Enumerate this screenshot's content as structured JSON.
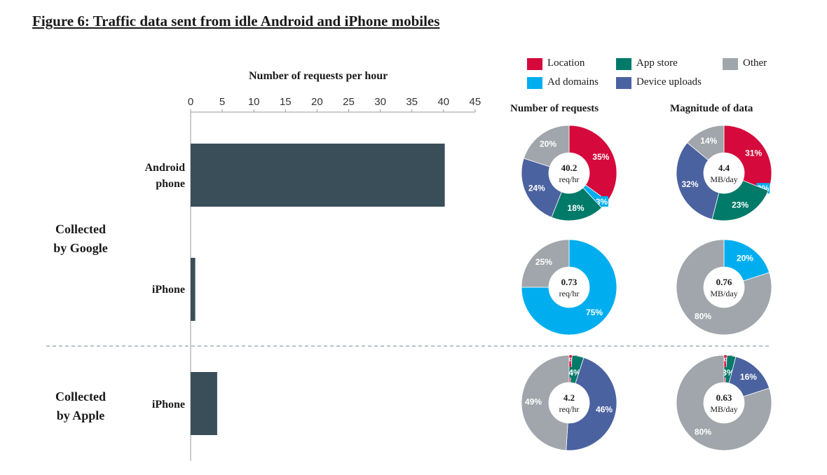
{
  "figure": {
    "title": "Figure 6: Traffic data sent from idle Android and iPhone mobiles"
  },
  "legend": {
    "items": [
      {
        "key": "location",
        "label": "Location",
        "color": "#d6093c"
      },
      {
        "key": "app_store",
        "label": "App store",
        "color": "#007a69"
      },
      {
        "key": "other",
        "label": "Other",
        "color": "#a0a6ab"
      },
      {
        "key": "ad_domains",
        "label": "Ad domains",
        "color": "#00aeef"
      },
      {
        "key": "device_uploads",
        "label": "Device uploads",
        "color": "#4b62a0"
      }
    ]
  },
  "columns": {
    "requests": "Number of requests",
    "magnitude": "Magnitude of data"
  },
  "groups": {
    "google": "Collected\nby Google",
    "apple": "Collected\nby Apple"
  },
  "chart_data": [
    {
      "type": "bar",
      "orientation": "horizontal",
      "xlabel": "Number of requests per hour",
      "xlim": [
        0,
        45
      ],
      "ticks": [
        "0",
        "5",
        "10",
        "15",
        "20",
        "25",
        "30",
        "35",
        "40",
        "45"
      ],
      "categories": [
        "Android phone",
        "iPhone",
        "iPhone"
      ],
      "groups": [
        "Collected by Google",
        "Collected by Google",
        "Collected by Apple"
      ],
      "values": [
        40.2,
        0.73,
        4.2
      ],
      "color": "#3a4e59"
    },
    {
      "type": "pie",
      "charts": [
        {
          "id": "google-android-requests",
          "center": "40.2",
          "unit": "req/hr",
          "slices": [
            {
              "key": "location",
              "value": 35,
              "label": "35%"
            },
            {
              "key": "ad_domains",
              "value": 3,
              "label": "3%"
            },
            {
              "key": "app_store",
              "value": 18,
              "label": "18%"
            },
            {
              "key": "device_uploads",
              "value": 24,
              "label": "24%"
            },
            {
              "key": "other",
              "value": 20,
              "label": "20%"
            }
          ]
        },
        {
          "id": "google-android-magnitude",
          "center": "4.4",
          "unit": "MB/day",
          "slices": [
            {
              "key": "location",
              "value": 31,
              "label": "31%"
            },
            {
              "key": "ad_domains",
              "value": 0,
              "label": "0%"
            },
            {
              "key": "app_store",
              "value": 23,
              "label": "23%"
            },
            {
              "key": "device_uploads",
              "value": 32,
              "label": "32%"
            },
            {
              "key": "other",
              "value": 14,
              "label": "14%"
            }
          ]
        },
        {
          "id": "google-iphone-requests",
          "center": "0.73",
          "unit": "req/hr",
          "slices": [
            {
              "key": "ad_domains",
              "value": 75,
              "label": "75%"
            },
            {
              "key": "other",
              "value": 25,
              "label": "25%"
            }
          ]
        },
        {
          "id": "google-iphone-magnitude",
          "center": "0.76",
          "unit": "MB/day",
          "slices": [
            {
              "key": "ad_domains",
              "value": 20,
              "label": "20%"
            },
            {
              "key": "other",
              "value": 80,
              "label": "80%"
            }
          ]
        },
        {
          "id": "apple-iphone-requests",
          "center": "4.2",
          "unit": "req/hr",
          "slices": [
            {
              "key": "location",
              "value": 1,
              "label": "1%"
            },
            {
              "key": "app_store",
              "value": 4,
              "label": "4%"
            },
            {
              "key": "device_uploads",
              "value": 46,
              "label": "46%"
            },
            {
              "key": "other",
              "value": 49,
              "label": "49%"
            }
          ]
        },
        {
          "id": "apple-iphone-magnitude",
          "center": "0.63",
          "unit": "MB/day",
          "slices": [
            {
              "key": "location",
              "value": 1,
              "label": "1%"
            },
            {
              "key": "app_store",
              "value": 3,
              "label": "3%"
            },
            {
              "key": "device_uploads",
              "value": 16,
              "label": "16%"
            },
            {
              "key": "other",
              "value": 80,
              "label": "80%"
            }
          ]
        }
      ]
    }
  ]
}
